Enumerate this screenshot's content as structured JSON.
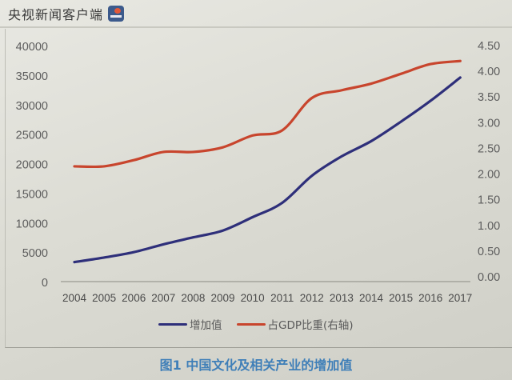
{
  "watermark": {
    "text": "央视新闻客户端",
    "logo_icon": "cctv-news-logo-icon"
  },
  "legend": [
    {
      "label": "增加值",
      "color": "#2e2f7a"
    },
    {
      "label": "占GDP比重(右轴)",
      "color": "#c8452d"
    }
  ],
  "caption": "图1 中国文化及相关产业的增加值",
  "chart_data": {
    "type": "line",
    "title": "图1 中国文化及相关产业的增加值",
    "xlabel": "",
    "ylabel": "",
    "y2label": "",
    "x": [
      "2004",
      "2005",
      "2006",
      "2007",
      "2008",
      "2009",
      "2010",
      "2011",
      "2012",
      "2013",
      "2014",
      "2015",
      "2016",
      "2017"
    ],
    "series": [
      {
        "name": "增加值",
        "axis": "left",
        "color": "#2e2f7a",
        "values": [
          3440,
          4216,
          5123,
          6455,
          7630,
          8786,
          11052,
          13479,
          18071,
          21351,
          23940,
          27235,
          30785,
          34722
        ]
      },
      {
        "name": "占GDP比重(右轴)",
        "axis": "right",
        "color": "#c8452d",
        "values": [
          2.15,
          2.15,
          2.27,
          2.43,
          2.43,
          2.52,
          2.75,
          2.85,
          3.48,
          3.63,
          3.76,
          3.95,
          4.14,
          4.2
        ]
      }
    ],
    "ylim": [
      0,
      40000
    ],
    "y2lim": [
      0,
      4.5
    ],
    "yticks": [
      "0",
      "5000",
      "10000",
      "15000",
      "20000",
      "25000",
      "30000",
      "35000",
      "40000"
    ],
    "y2ticks": [
      "0.00",
      "0.50",
      "1.00",
      "1.50",
      "2.00",
      "2.50",
      "3.00",
      "3.50",
      "4.00",
      "4.50"
    ],
    "grid": false,
    "legend_position": "bottom"
  }
}
